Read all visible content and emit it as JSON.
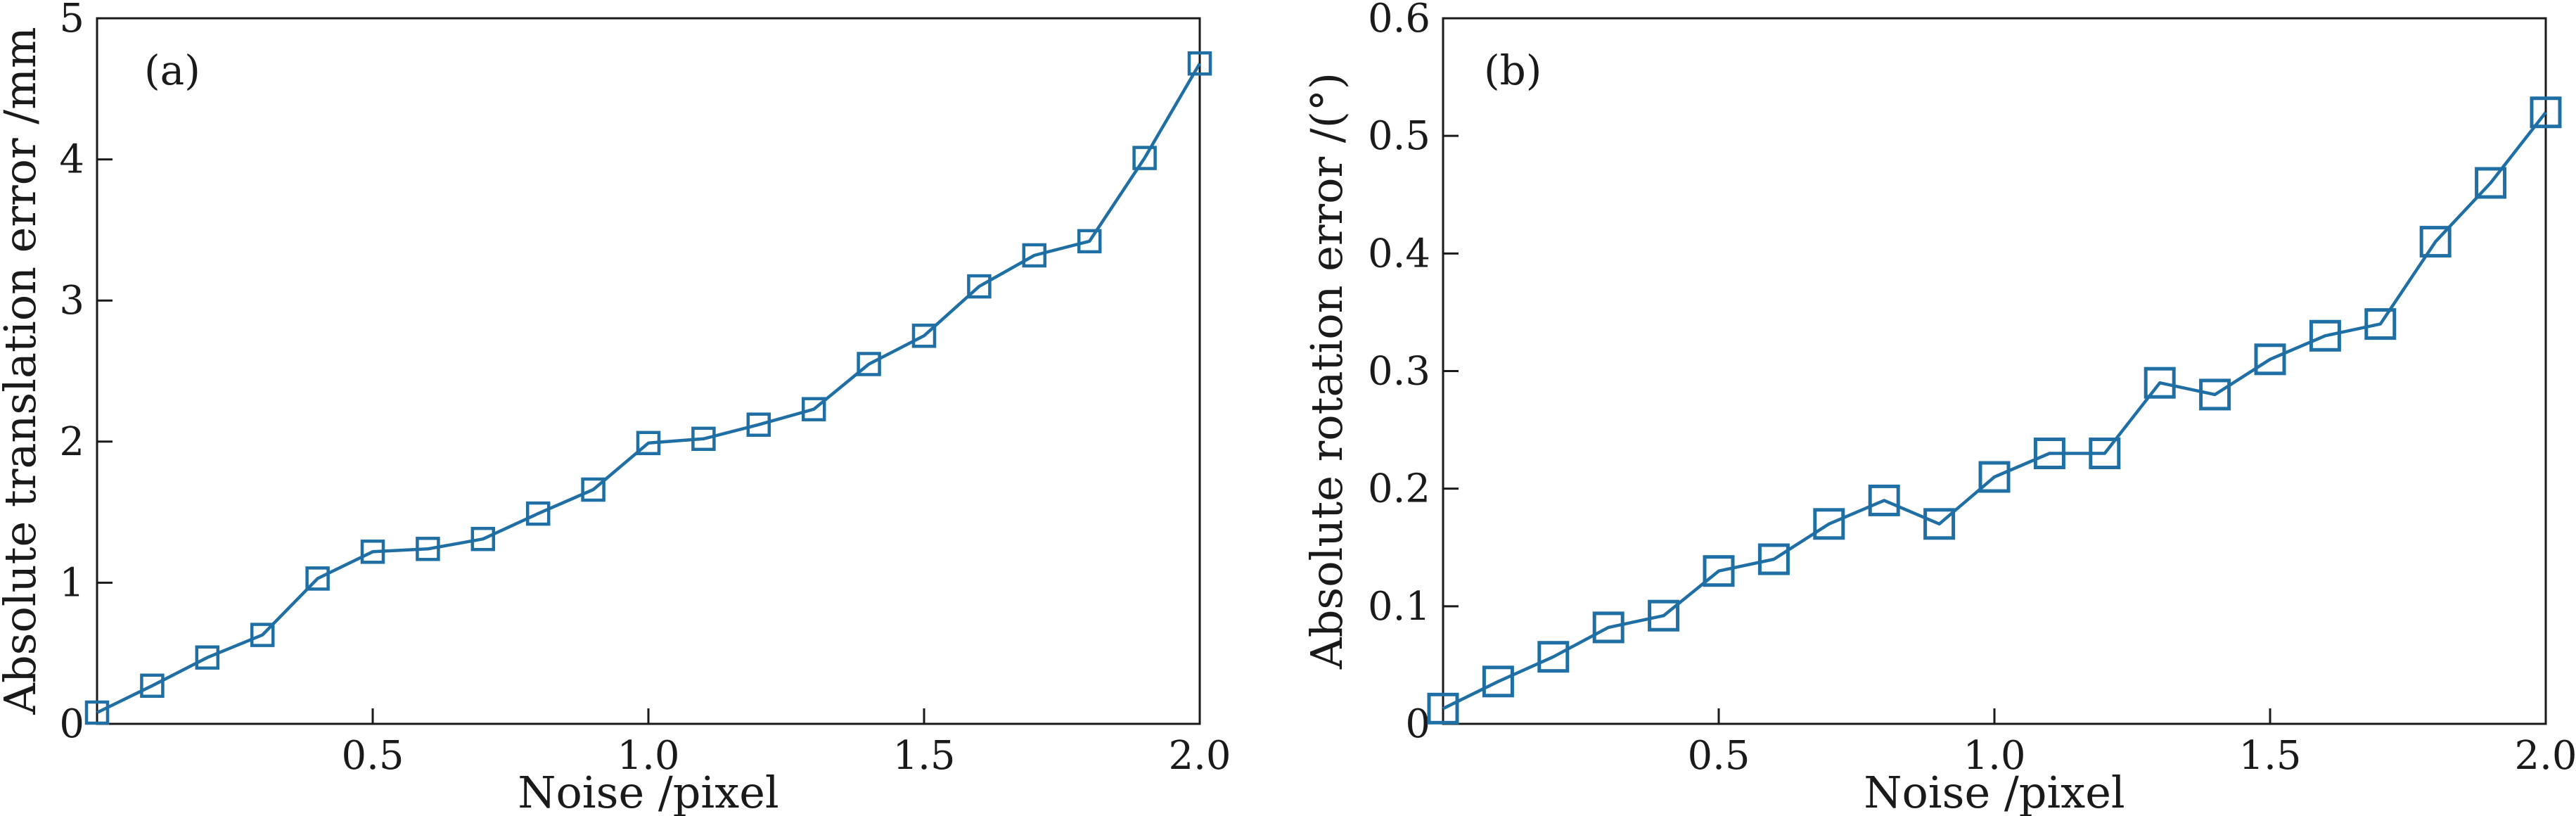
{
  "colors": {
    "series": "#1f6fa5",
    "axis": "#1a1a1a",
    "background": "#ffffff"
  },
  "chart_data": [
    {
      "type": "line",
      "panel_label": "(a)",
      "xlabel": "Noise /pixel",
      "ylabel": "Absolute translation error /mm",
      "xlim": [
        0,
        2.0
      ],
      "ylim": [
        0,
        5
      ],
      "xticks": [
        0.5,
        1.0,
        1.5,
        2.0
      ],
      "xtick_labels": [
        "0.5",
        "1.0",
        "1.5",
        "2.0"
      ],
      "yticks": [
        0,
        1,
        2,
        3,
        4,
        5
      ],
      "ytick_labels": [
        "0",
        "1",
        "2",
        "3",
        "4",
        "5"
      ],
      "grid": false,
      "marker": "square",
      "series": [
        {
          "x": [
            0.0,
            0.1,
            0.2,
            0.3,
            0.4,
            0.5,
            0.6,
            0.7,
            0.8,
            0.9,
            1.0,
            1.1,
            1.2,
            1.3,
            1.4,
            1.5,
            1.6,
            1.7,
            1.8,
            1.9,
            2.0
          ],
          "values": [
            0.08,
            0.27,
            0.47,
            0.63,
            1.03,
            1.22,
            1.24,
            1.31,
            1.49,
            1.66,
            1.99,
            2.02,
            2.12,
            2.23,
            2.55,
            2.75,
            3.1,
            3.32,
            3.42,
            4.01,
            4.68
          ]
        }
      ]
    },
    {
      "type": "line",
      "panel_label": "(b)",
      "xlabel": "Noise /pixel",
      "ylabel": "Absolute rotation error /(°)",
      "xlim": [
        0,
        2.0
      ],
      "ylim": [
        0,
        0.6
      ],
      "xticks": [
        0.5,
        1.0,
        1.5,
        2.0
      ],
      "xtick_labels": [
        "0.5",
        "1.0",
        "1.5",
        "2.0"
      ],
      "yticks": [
        0,
        0.1,
        0.2,
        0.3,
        0.4,
        0.5,
        0.6
      ],
      "ytick_labels": [
        "0",
        "0.1",
        "0.2",
        "0.3",
        "0.4",
        "0.5",
        "0.6"
      ],
      "grid": false,
      "marker": "square",
      "series": [
        {
          "x": [
            0.0,
            0.1,
            0.2,
            0.3,
            0.4,
            0.5,
            0.6,
            0.7,
            0.8,
            0.9,
            1.0,
            1.1,
            1.2,
            1.3,
            1.4,
            1.5,
            1.6,
            1.7,
            1.8,
            1.9,
            2.0
          ],
          "values": [
            0.013,
            0.036,
            0.057,
            0.082,
            0.092,
            0.13,
            0.14,
            0.17,
            0.19,
            0.17,
            0.21,
            0.23,
            0.23,
            0.29,
            0.28,
            0.31,
            0.33,
            0.34,
            0.41,
            0.46,
            0.52
          ]
        }
      ]
    }
  ]
}
